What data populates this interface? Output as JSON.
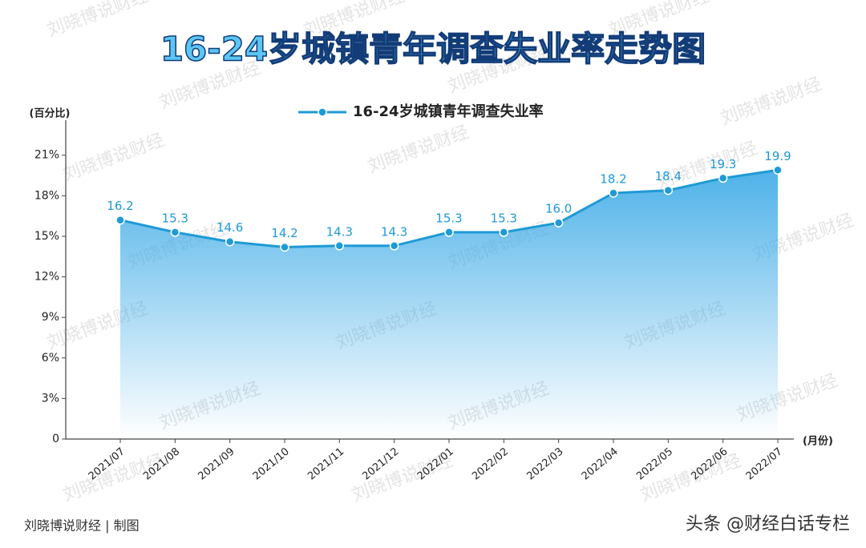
{
  "chart_data": {
    "type": "area-line",
    "title": "16-24岁城镇青年调查失业率走势图",
    "y_label": "(百分比)",
    "x_label": "(月份)",
    "categories": [
      "2021/07",
      "2021/08",
      "2021/09",
      "2021/10",
      "2021/11",
      "2021/12",
      "2022/01",
      "2022/02",
      "2022/03",
      "2022/04",
      "2022/05",
      "2022/06",
      "2022/07"
    ],
    "series": [
      {
        "name": "16-24岁城镇青年调查失业率",
        "color": "#1e9ad6",
        "values": [
          16.2,
          15.3,
          14.6,
          14.2,
          14.3,
          14.3,
          15.3,
          15.3,
          16.0,
          18.2,
          18.4,
          19.3,
          19.9
        ],
        "value_labels": [
          "16.2",
          "15.3",
          "14.6",
          "14.2",
          "14.3",
          "14.3",
          "15.3",
          "15.3",
          "16.0",
          "18.2",
          "18.4",
          "19.3",
          "19.9"
        ]
      }
    ],
    "ylim": [
      0,
      23
    ],
    "yticks": [
      0,
      {
        "value": 3,
        "label": "3%"
      },
      {
        "value": 6,
        "label": "6%"
      },
      {
        "value": 9,
        "label": "9%"
      },
      {
        "value": 12,
        "label": "12%"
      },
      {
        "value": 15,
        "label": "15%"
      },
      {
        "value": 18,
        "label": "18%"
      },
      {
        "value": 21,
        "label": "21%"
      }
    ],
    "legend": "top",
    "footer": "刘晓博说财经 | 制图",
    "source_mark": "头条 @财经白话专栏",
    "watermark": "刘晓博说财经"
  }
}
